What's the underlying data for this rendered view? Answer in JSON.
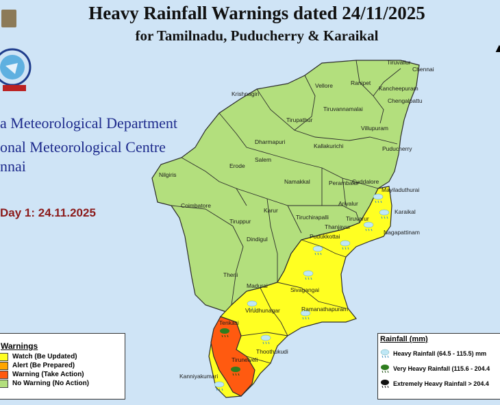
{
  "title": "Heavy Rainfall Warnings dated 24/11/2025",
  "subtitle": "for Tamilnadu, Puducherry & Karaikal",
  "org_lines": [
    "a Meteorological Department",
    "onal Meteorological Centre",
    "nnai"
  ],
  "day_label": "Day 1: 24.11.2025",
  "colors": {
    "no_warning": "#b3df7d",
    "watch": "#ffff22",
    "alert": "#ffa500",
    "warning": "#ff5a10",
    "sea": "#cfe4f6"
  },
  "warning_legend": {
    "title": "Warnings",
    "items": [
      {
        "label": "Watch (Be Updated)",
        "color": "#ffff22"
      },
      {
        "label": "Alert (Be Prepared)",
        "color": "#ffa500"
      },
      {
        "label": "Warning (Take Action)",
        "color": "#ff5a10"
      },
      {
        "label": "No Warning (No Action)",
        "color": "#b3df7d"
      }
    ]
  },
  "rainfall_legend": {
    "title": "Rainfall (mm)",
    "items": [
      {
        "label": "Heavy Rainfall (64.5 - 115.5) mm",
        "icon": "cloud-rain-light-icon",
        "color": "#8fd6ef"
      },
      {
        "label": "Very Heavy Rainfall (115.6 - 204.4",
        "icon": "cloud-rain-green-icon",
        "color": "#2e7d1e"
      },
      {
        "label": "Extremely Heavy Rainfall > 204.4",
        "icon": "cloud-rain-black-icon",
        "color": "#111111"
      }
    ]
  },
  "districts": [
    {
      "name": "Tiruvallur",
      "warning": "none"
    },
    {
      "name": "Chennai",
      "warning": "none"
    },
    {
      "name": "Vellore",
      "warning": "none"
    },
    {
      "name": "Ranipet",
      "warning": "none"
    },
    {
      "name": "Kancheepuram",
      "warning": "none"
    },
    {
      "name": "Chengalpattu",
      "warning": "none"
    },
    {
      "name": "Krishnagiri",
      "warning": "none"
    },
    {
      "name": "Tiruvannamalai",
      "warning": "none"
    },
    {
      "name": "Tirupathur",
      "warning": "none"
    },
    {
      "name": "Villupuram",
      "warning": "none"
    },
    {
      "name": "Dharmapuri",
      "warning": "none"
    },
    {
      "name": "Kallakurichi",
      "warning": "none"
    },
    {
      "name": "Puducherry",
      "warning": "none"
    },
    {
      "name": "Nilgiris",
      "warning": "none"
    },
    {
      "name": "Erode",
      "warning": "none"
    },
    {
      "name": "Salem",
      "warning": "none"
    },
    {
      "name": "Namakkal",
      "warning": "none"
    },
    {
      "name": "Perambalur",
      "warning": "none"
    },
    {
      "name": "Cuddalore",
      "warning": "none"
    },
    {
      "name": "Mayiladuthurai",
      "warning": "watch"
    },
    {
      "name": "Coimbatore",
      "warning": "none"
    },
    {
      "name": "Ariyalur",
      "warning": "none"
    },
    {
      "name": "Karaikal",
      "warning": "watch"
    },
    {
      "name": "Karur",
      "warning": "none"
    },
    {
      "name": "Tiruchirapalli",
      "warning": "none"
    },
    {
      "name": "Thanjavur",
      "warning": "watch"
    },
    {
      "name": "Tiruvarur",
      "warning": "watch"
    },
    {
      "name": "Tiruppur",
      "warning": "none"
    },
    {
      "name": "Nagapattinam",
      "warning": "watch"
    },
    {
      "name": "Dindigul",
      "warning": "none"
    },
    {
      "name": "Pudukkottai",
      "warning": "watch"
    },
    {
      "name": "Theni",
      "warning": "none"
    },
    {
      "name": "Madurai",
      "warning": "none"
    },
    {
      "name": "Sivagangai",
      "warning": "watch"
    },
    {
      "name": "Virudhunagar",
      "warning": "watch"
    },
    {
      "name": "Ramanathapuram",
      "warning": "watch"
    },
    {
      "name": "Tenkasi",
      "warning": "warning"
    },
    {
      "name": "Thoothukudi",
      "warning": "watch"
    },
    {
      "name": "Tirunelveli",
      "warning": "warning"
    },
    {
      "name": "Kanniyakumari",
      "warning": "watch"
    }
  ]
}
